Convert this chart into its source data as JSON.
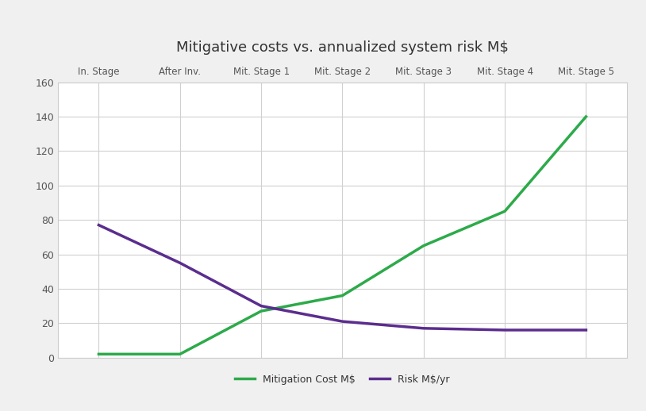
{
  "title": "Mitigative costs vs. annualized system risk M$",
  "x_labels": [
    "In. Stage",
    "After Inv.",
    "Mit. Stage 1",
    "Mit. Stage 2",
    "Mit. Stage 3",
    "Mit. Stage 4",
    "Mit. Stage 5"
  ],
  "mitigation_cost": [
    2,
    2,
    27,
    36,
    65,
    85,
    140
  ],
  "risk": [
    77,
    55,
    30,
    21,
    17,
    16,
    16
  ],
  "mitigation_color": "#2daa4a",
  "risk_color": "#5b2d8e",
  "ylim": [
    0,
    160
  ],
  "yticks": [
    0,
    20,
    40,
    60,
    80,
    100,
    120,
    140,
    160
  ],
  "legend_mitigation": "Mitigation Cost M$",
  "legend_risk": "Risk M$/yr",
  "line_width": 2.5,
  "bg_color": "#ffffff",
  "fig_bg_color": "#f0f0f0",
  "grid_color": "#d0d0d0",
  "title_fontsize": 13,
  "label_fontsize": 8.5,
  "tick_fontsize": 9,
  "legend_fontsize": 9,
  "tick_color": "#555555",
  "title_color": "#333333"
}
